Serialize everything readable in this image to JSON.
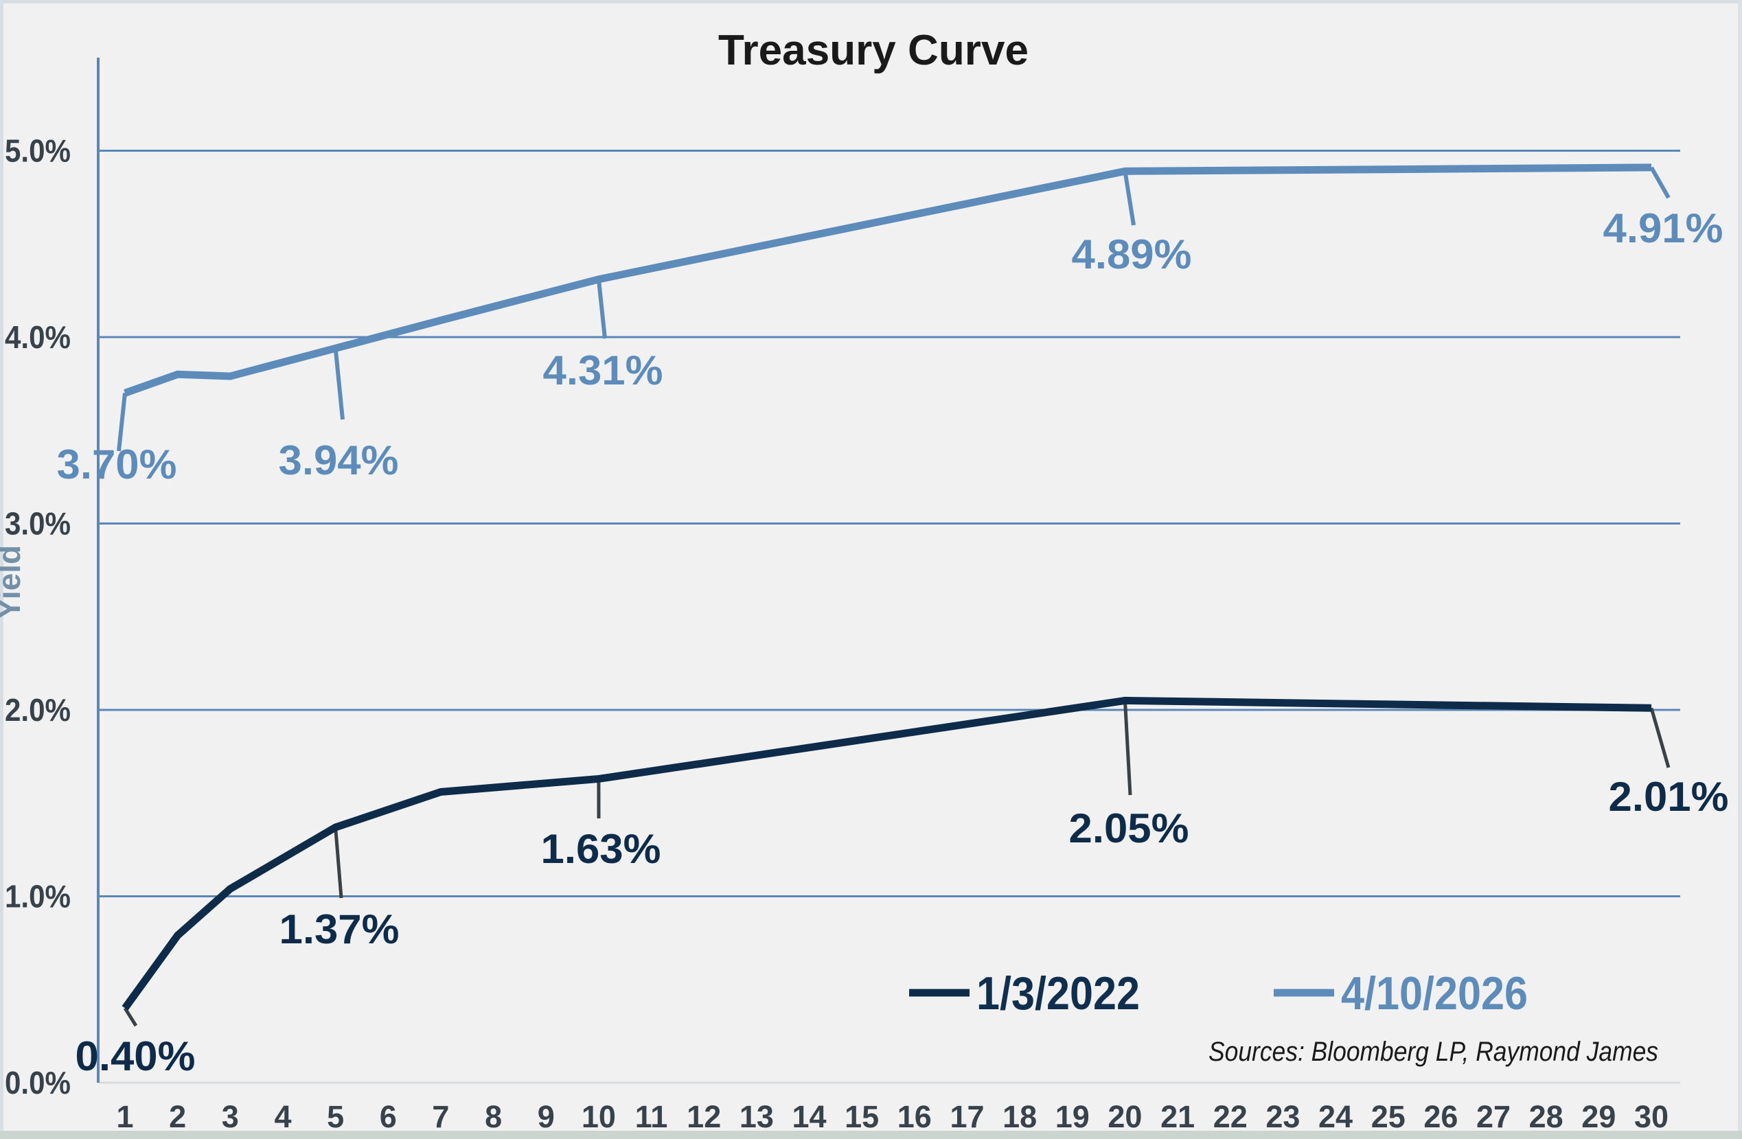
{
  "frame": {
    "sources": "Sources: Bloomberg LP, Raymond James"
  },
  "chart_data": {
    "type": "line",
    "title": "Treasury Curve",
    "xlabel": "",
    "ylabel": "Yield",
    "ylim": [
      0,
      5.5
    ],
    "grid": "horizontal",
    "legend_position": "bottom-right",
    "x_ticks": [
      1,
      2,
      3,
      4,
      5,
      6,
      7,
      8,
      9,
      10,
      11,
      12,
      13,
      14,
      15,
      16,
      17,
      18,
      19,
      20,
      21,
      22,
      23,
      24,
      25,
      26,
      27,
      28,
      29,
      30
    ],
    "y_ticks": [
      {
        "v": 0,
        "label": "0.0%"
      },
      {
        "v": 1,
        "label": "1.0%"
      },
      {
        "v": 2,
        "label": "2.0%"
      },
      {
        "v": 3,
        "label": "3.0%"
      },
      {
        "v": 4,
        "label": "4.0%"
      },
      {
        "v": 5,
        "label": "5.0%"
      }
    ],
    "series": [
      {
        "name": "1/3/2022",
        "color": "#0e2b4a",
        "maturities": [
          1,
          2,
          3,
          5,
          7,
          10,
          20,
          30
        ],
        "values": [
          0.4,
          0.79,
          1.04,
          1.37,
          1.56,
          1.63,
          2.05,
          2.01
        ],
        "labels": [
          {
            "x": 1,
            "text": "0.40%"
          },
          {
            "x": 5,
            "text": "1.37%"
          },
          {
            "x": 10,
            "text": "1.63%"
          },
          {
            "x": 20,
            "text": "2.05%"
          },
          {
            "x": 30,
            "text": "2.01%"
          }
        ]
      },
      {
        "name": "4/10/2026",
        "color": "#5d8cbb",
        "maturities": [
          1,
          2,
          3,
          5,
          7,
          10,
          20,
          30
        ],
        "values": [
          3.7,
          3.8,
          3.79,
          3.94,
          4.09,
          4.31,
          4.89,
          4.91
        ],
        "labels": [
          {
            "x": 1,
            "text": "3.70%"
          },
          {
            "x": 5,
            "text": "3.94%"
          },
          {
            "x": 10,
            "text": "4.31%"
          },
          {
            "x": 20,
            "text": "4.89%"
          },
          {
            "x": 30,
            "text": "4.91%"
          }
        ]
      }
    ]
  }
}
